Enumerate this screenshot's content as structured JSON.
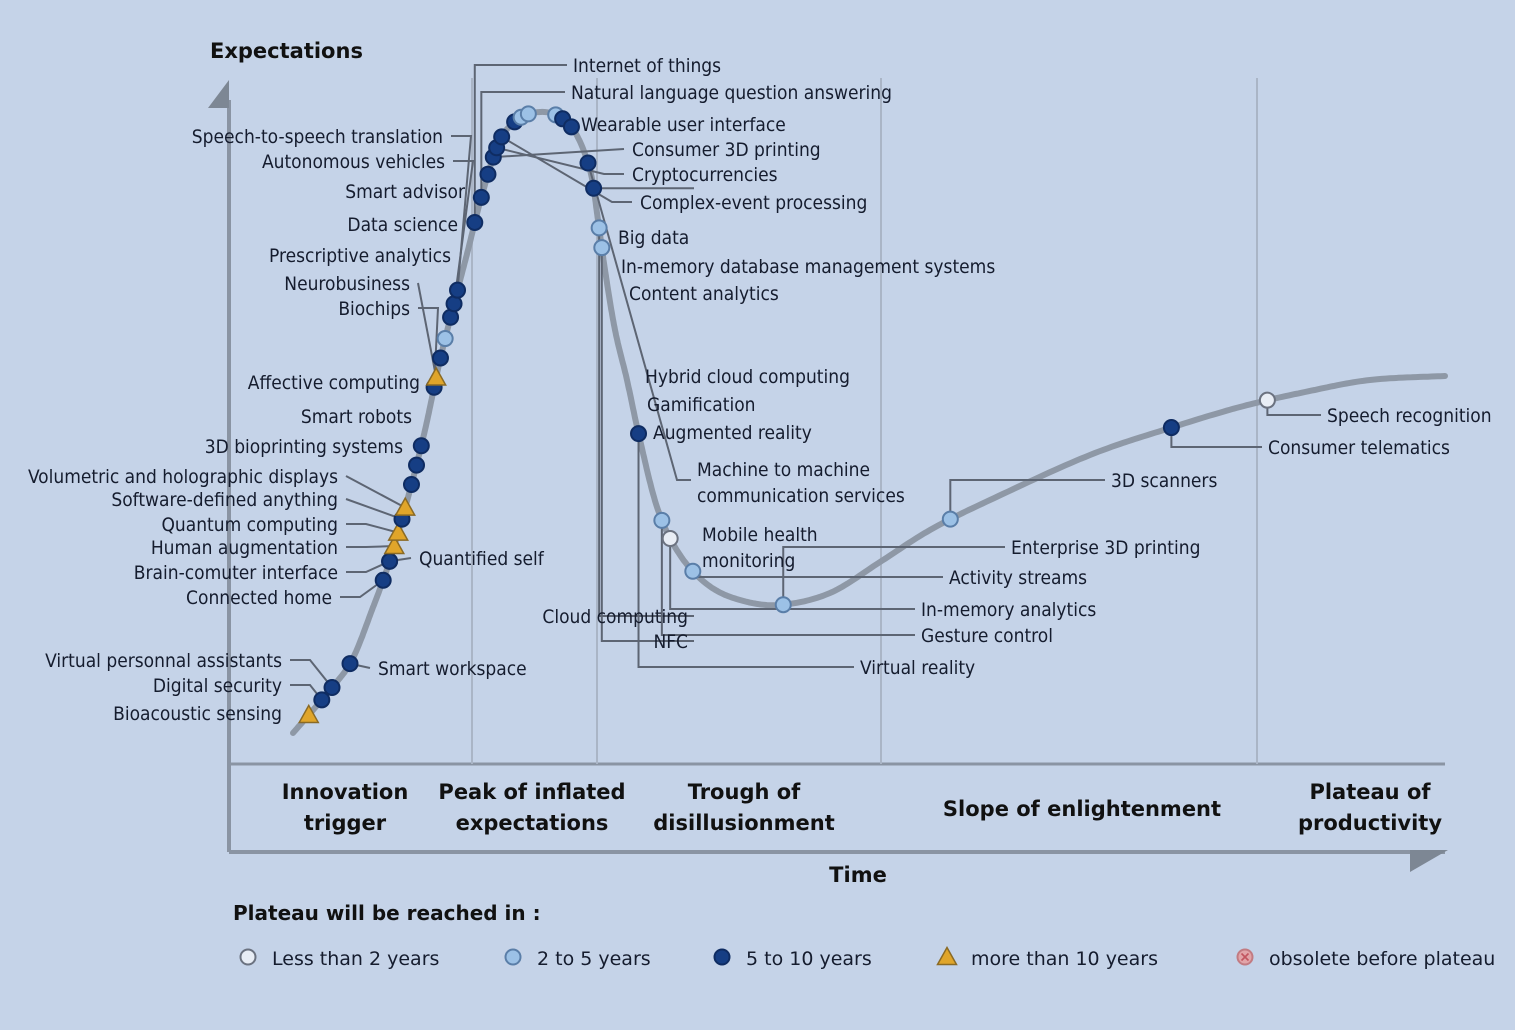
{
  "chart_data": {
    "type": "scatter",
    "title": "",
    "ylabel": "Expectations",
    "xlabel": "Time",
    "phases": [
      {
        "label": [
          "Innovation",
          "trigger"
        ]
      },
      {
        "label": [
          "Peak of inflated",
          "expectations"
        ]
      },
      {
        "label": [
          "Trough of",
          "disillusionment"
        ]
      },
      {
        "label": [
          "Slope of enlightenment"
        ]
      },
      {
        "label": [
          "Plateau of",
          "productivity"
        ]
      }
    ],
    "legend": {
      "title": "Plateau will be reached in :",
      "placement": "bottom",
      "items": [
        {
          "key": "lt2",
          "label": "Less than 2 years",
          "color": "#e8edf5",
          "stroke": "#6b7280",
          "shape": "circle"
        },
        {
          "key": "2to5",
          "label": "2 to 5 years",
          "color": "#9cc1e6",
          "stroke": "#5a7ea8",
          "shape": "circle"
        },
        {
          "key": "5to10",
          "label": "5 to 10 years",
          "color": "#163e84",
          "stroke": "#0f2c62",
          "shape": "circle"
        },
        {
          "key": "gt10",
          "label": "more than 10 years",
          "color": "#e0a52a",
          "stroke": "#8a6a25",
          "shape": "triangle"
        },
        {
          "key": "obsolete",
          "label": "obsolete before plateau",
          "color": "#e2a4a8",
          "stroke": "#c27b82",
          "shape": "circle-x"
        }
      ]
    },
    "points": [
      {
        "name": "Bioacoustic sensing",
        "category": "gt10",
        "t": 0.012
      },
      {
        "name": "Digital security",
        "category": "5to10",
        "t": 0.022
      },
      {
        "name": "Virtual personnal assistants",
        "category": "5to10",
        "t": 0.03
      },
      {
        "name": "Smart workspace",
        "category": "5to10",
        "t": 0.045
      },
      {
        "name": "Connected home",
        "category": "5to10",
        "t": 0.09
      },
      {
        "name": "Brain-comuter interface",
        "category": "5to10",
        "t": 0.1
      },
      {
        "name": "Quantified self",
        "category": "5to10",
        "t": 0.1
      },
      {
        "name": "Human augmentation",
        "category": "gt10",
        "t": 0.108
      },
      {
        "name": "Quantum computing",
        "category": "gt10",
        "t": 0.115
      },
      {
        "name": "Software-defined anything",
        "category": "5to10",
        "t": 0.122
      },
      {
        "name": "Volumetric and holographic displays",
        "category": "gt10",
        "t": 0.128
      },
      {
        "name": "3D bioprinting systems",
        "category": "5to10",
        "t": 0.14
      },
      {
        "name": "Smart robots",
        "category": "5to10",
        "t": 0.15
      },
      {
        "name": "Affective computing",
        "category": "5to10",
        "t": 0.16
      },
      {
        "name": "Biochips",
        "category": "5to10",
        "t": 0.19
      },
      {
        "name": "Neurobusiness",
        "category": "gt10",
        "t": 0.195
      },
      {
        "name": "Prescriptive analytics",
        "category": "5to10",
        "t": 0.205
      },
      {
        "name": "Data science",
        "category": "2to5",
        "t": 0.215
      },
      {
        "name": "Smart advisor",
        "category": "5to10",
        "t": 0.226
      },
      {
        "name": "Autonomous vehicles",
        "category": "5to10",
        "t": 0.233
      },
      {
        "name": "Speech-to-speech translation",
        "category": "5to10",
        "t": 0.24
      },
      {
        "name": "Internet of things",
        "category": "5to10",
        "t": 0.275
      },
      {
        "name": "Natural language question answering",
        "category": "5to10",
        "t": 0.288
      },
      {
        "name": "Wearable user interface",
        "category": "5to10",
        "t": 0.3
      },
      {
        "name": "Consumer 3D printing",
        "category": "5to10",
        "t": 0.309
      },
      {
        "name": "Cryptocurrencies",
        "category": "5to10",
        "t": 0.314
      },
      {
        "name": "Complex-event processing",
        "category": "5to10",
        "t": 0.32
      },
      {
        "name": "Big data",
        "category": "5to10",
        "t": 0.33
      },
      {
        "name": "In-memory database management systems",
        "category": "2to5",
        "t": 0.334
      },
      {
        "name": "Content analytics",
        "category": "2to5",
        "t": 0.338
      },
      {
        "name": "Hybrid cloud computing",
        "category": "2to5",
        "t": 0.352
      },
      {
        "name": "Gamification",
        "category": "5to10",
        "t": 0.356
      },
      {
        "name": "Augmented reality",
        "category": "5to10",
        "t": 0.362
      },
      {
        "name": "Machine to machine communication services",
        "category": "5to10",
        "t": 0.382
      },
      {
        "name": "Mobile health monitoring",
        "category": "5to10",
        "t": 0.395
      },
      {
        "name": "Cloud computing",
        "category": "2to5",
        "t": 0.415
      },
      {
        "name": "NFC",
        "category": "2to5",
        "t": 0.425
      },
      {
        "name": "Virtual reality",
        "category": "5to10",
        "t": 0.52
      },
      {
        "name": "Gesture control",
        "category": "2to5",
        "t": 0.565
      },
      {
        "name": "In-memory analytics",
        "category": "lt2",
        "t": 0.575
      },
      {
        "name": "Activity streams",
        "category": "2to5",
        "t": 0.595
      },
      {
        "name": "Enterprise 3D printing",
        "category": "2to5",
        "t": 0.645
      },
      {
        "name": "3D scanners",
        "category": "2to5",
        "t": 0.74
      },
      {
        "name": "Consumer telematics",
        "category": "5to10",
        "t": 0.86
      },
      {
        "name": "Speech recognition",
        "category": "lt2",
        "t": 0.91
      }
    ]
  }
}
